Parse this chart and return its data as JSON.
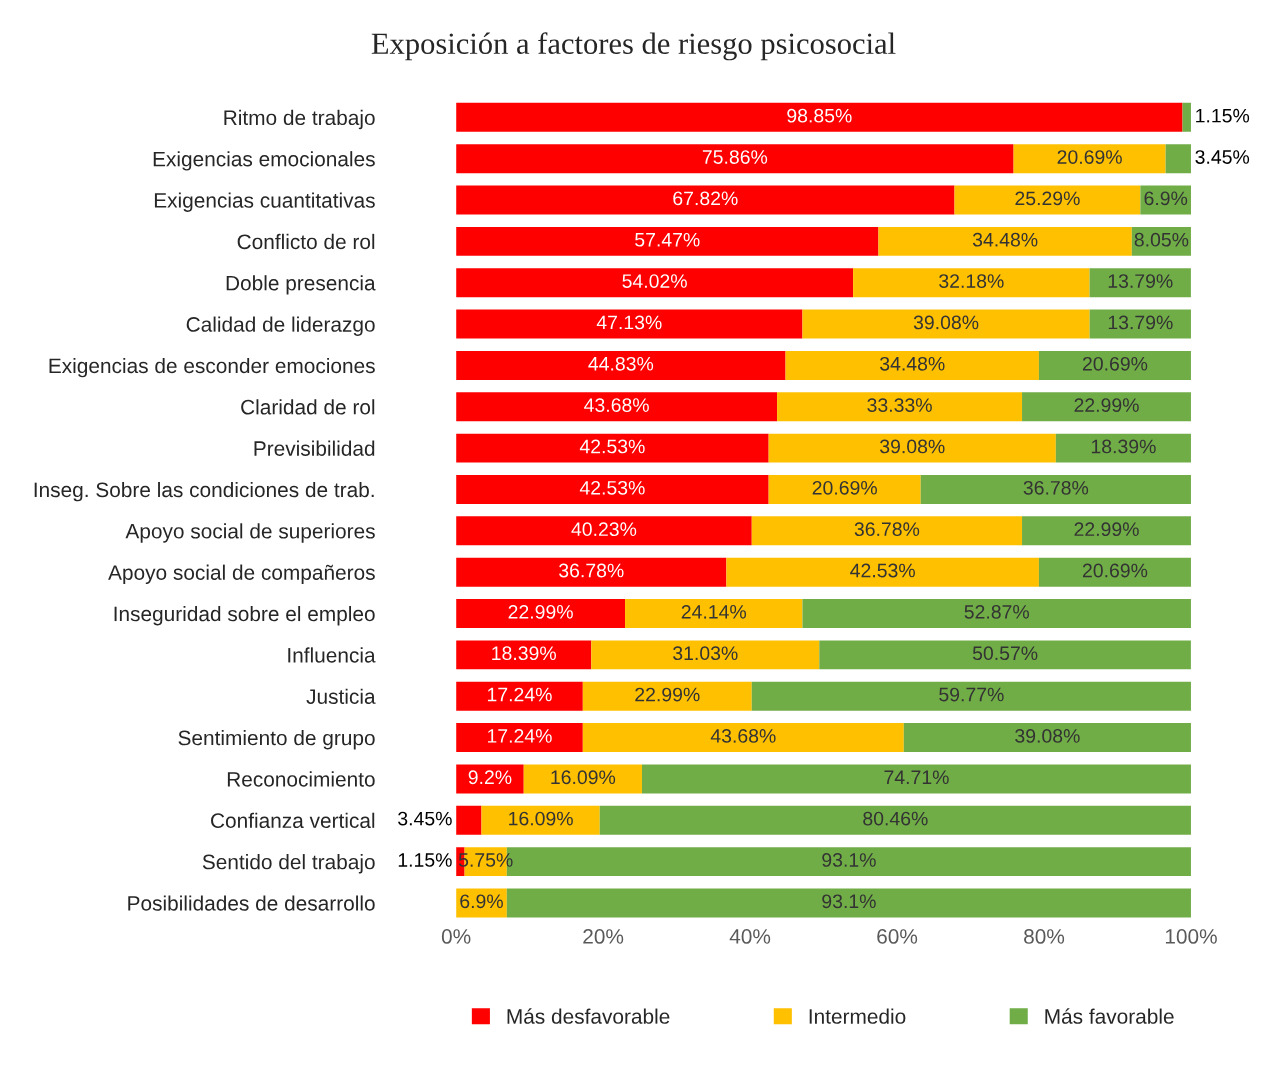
{
  "chart_data": {
    "type": "bar",
    "orientation": "horizontal",
    "stacked": true,
    "title": "Exposición a factores de riesgo psicosocial",
    "categories": [
      "Ritmo de trabajo",
      "Exigencias emocionales",
      "Exigencias cuantitativas",
      "Conflicto de rol",
      "Doble presencia",
      "Calidad de liderazgo",
      "Exigencias de esconder emociones",
      "Claridad de rol",
      "Previsibilidad",
      "Inseg. Sobre las condiciones de trab.",
      "Apoyo social de superiores",
      "Apoyo social de compañeros",
      "Inseguridad sobre el empleo",
      "Influencia",
      "Justicia",
      "Sentimiento de grupo",
      "Reconocimiento",
      "Confianza vertical",
      "Sentido del trabajo",
      "Posibilidades de desarrollo"
    ],
    "series": [
      {
        "name": "Más desfavorable",
        "color": "#ff0000",
        "values": [
          98.85,
          75.86,
          67.82,
          57.47,
          54.02,
          47.13,
          44.83,
          43.68,
          42.53,
          42.53,
          40.23,
          36.78,
          22.99,
          18.39,
          17.24,
          17.24,
          9.2,
          3.45,
          1.15,
          0
        ],
        "value_labels": [
          "98.85%",
          "75.86%",
          "67.82%",
          "57.47%",
          "54.02%",
          "47.13%",
          "44.83%",
          "43.68%",
          "42.53%",
          "42.53%",
          "40.23%",
          "36.78%",
          "22.99%",
          "18.39%",
          "17.24%",
          "17.24%",
          "9.2%",
          "3.45%",
          "1.15%",
          null
        ]
      },
      {
        "name": "Intermedio",
        "color": "#ffc000",
        "values": [
          0,
          20.69,
          25.29,
          34.48,
          32.18,
          39.08,
          34.48,
          33.33,
          39.08,
          20.69,
          36.78,
          42.53,
          24.14,
          31.03,
          22.99,
          43.68,
          16.09,
          16.09,
          5.75,
          6.9
        ],
        "value_labels": [
          null,
          "20.69%",
          "25.29%",
          "34.48%",
          "32.18%",
          "39.08%",
          "34.48%",
          "33.33%",
          "39.08%",
          "20.69%",
          "36.78%",
          "42.53%",
          "24.14%",
          "31.03%",
          "22.99%",
          "43.68%",
          "16.09%",
          "16.09%",
          "5.75%",
          "6.9%"
        ]
      },
      {
        "name": "Más favorable",
        "color": "#70ad47",
        "values": [
          1.15,
          3.45,
          6.9,
          8.05,
          13.79,
          13.79,
          20.69,
          22.99,
          18.39,
          36.78,
          22.99,
          20.69,
          52.87,
          50.57,
          59.77,
          39.08,
          74.71,
          80.46,
          93.1,
          93.1
        ],
        "value_labels": [
          "1.15%",
          "3.45%",
          "6.9%",
          "8.05%",
          "13.79%",
          "13.79%",
          "20.69%",
          "22.99%",
          "18.39%",
          "36.78%",
          "22.99%",
          "20.69%",
          "52.87%",
          "50.57%",
          "59.77%",
          "39.08%",
          "74.71%",
          "80.46%",
          "93.1%",
          "93.1%"
        ]
      }
    ],
    "xlim": [
      0,
      100
    ],
    "xticks": [
      {
        "value": 0,
        "label": "0%"
      },
      {
        "value": 20,
        "label": "20%"
      },
      {
        "value": 40,
        "label": "40%"
      },
      {
        "value": 60,
        "label": "60%"
      },
      {
        "value": 80,
        "label": "80%"
      },
      {
        "value": 100,
        "label": "100%"
      }
    ],
    "grid": false,
    "legend": "bottom"
  }
}
